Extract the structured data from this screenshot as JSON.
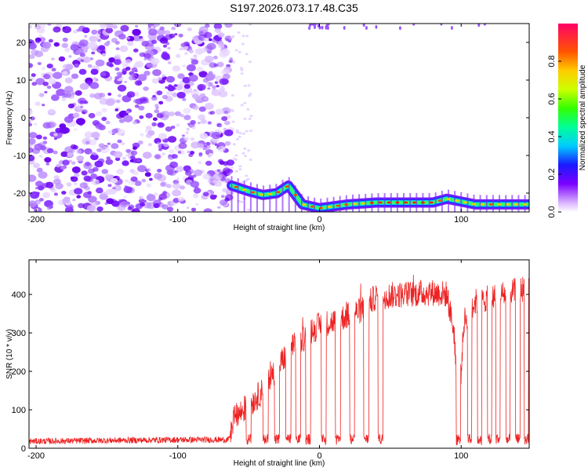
{
  "title": "S197.2026.073.17.48.C35",
  "chart_data": [
    {
      "type": "heatmap",
      "xlabel": "Height of straight line (km)",
      "ylabel": "Frequency (Hz)",
      "xlim": [
        -205,
        148
      ],
      "ylim": [
        -25,
        25
      ],
      "xticks": [
        -200,
        -100,
        0,
        100
      ],
      "yticks": [
        -20,
        -10,
        0,
        10,
        20
      ],
      "colorbar": {
        "label": "Normalized spectral amplitude",
        "ticks": [
          "0.0",
          "0.2",
          "0.4",
          "0.6",
          "0.8"
        ],
        "range": [
          0,
          1
        ]
      },
      "noise_region": {
        "x_from": -205,
        "x_to": -62
      },
      "ridge": {
        "points": [
          {
            "x": -62,
            "y": -18
          },
          {
            "x": -50,
            "y": -19.5
          },
          {
            "x": -40,
            "y": -20.5
          },
          {
            "x": -30,
            "y": -20
          },
          {
            "x": -22,
            "y": -18
          },
          {
            "x": -12,
            "y": -23
          },
          {
            "x": 0,
            "y": -24
          },
          {
            "x": 20,
            "y": -23
          },
          {
            "x": 40,
            "y": -22.5
          },
          {
            "x": 80,
            "y": -22.5
          },
          {
            "x": 90,
            "y": -21.5
          },
          {
            "x": 110,
            "y": -23
          },
          {
            "x": 148,
            "y": -23
          }
        ]
      }
    },
    {
      "type": "line",
      "xlabel": "Height of straight line (km)",
      "ylabel": "SNR (10 * v/v)",
      "xlim": [
        -205,
        148
      ],
      "ylim": [
        0,
        490
      ],
      "xticks": [
        -200,
        -100,
        0,
        100
      ],
      "yticks": [
        0,
        100,
        200,
        300,
        400
      ],
      "line_color": "#ee2222",
      "series": [
        {
          "envelope": [
            {
              "x": -205,
              "y": 18
            },
            {
              "x": -100,
              "y": 22
            },
            {
              "x": -64,
              "y": 22
            },
            {
              "x": -60,
              "y": 80
            },
            {
              "x": -50,
              "y": 110
            },
            {
              "x": -40,
              "y": 150
            },
            {
              "x": -30,
              "y": 210
            },
            {
              "x": -20,
              "y": 260
            },
            {
              "x": -10,
              "y": 290
            },
            {
              "x": 0,
              "y": 320
            },
            {
              "x": 10,
              "y": 330
            },
            {
              "x": 20,
              "y": 345
            },
            {
              "x": 30,
              "y": 360
            },
            {
              "x": 40,
              "y": 395
            },
            {
              "x": 60,
              "y": 400
            },
            {
              "x": 80,
              "y": 405
            },
            {
              "x": 90,
              "y": 400
            },
            {
              "x": 95,
              "y": 300
            },
            {
              "x": 98,
              "y": 80
            },
            {
              "x": 102,
              "y": 330
            },
            {
              "x": 110,
              "y": 380
            },
            {
              "x": 120,
              "y": 390
            },
            {
              "x": 130,
              "y": 400
            },
            {
              "x": 140,
              "y": 410
            },
            {
              "x": 148,
              "y": 420
            }
          ],
          "dropouts": [
            -50,
            -38,
            -30,
            -22,
            -15,
            -8,
            3,
            13,
            23,
            33,
            43,
            98,
            106,
            113,
            120,
            126,
            133,
            140,
            146
          ]
        }
      ]
    }
  ]
}
